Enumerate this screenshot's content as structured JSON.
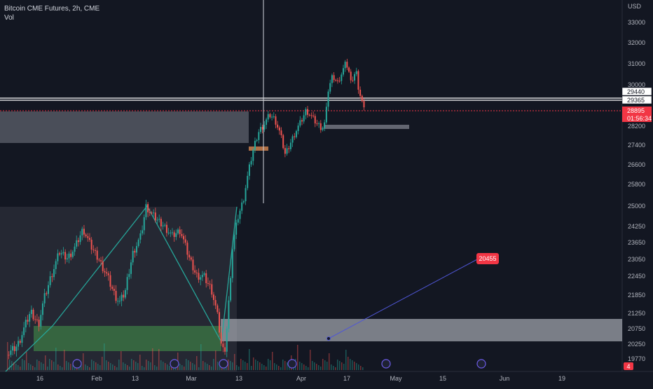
{
  "chart_data": {
    "type": "candlestick",
    "title": "Bitcoin CME Futures, 2h, CME",
    "subtitle": "Vol",
    "currency": "USD",
    "y_ticks": [
      33000,
      32000,
      31000,
      30000,
      28200,
      27400,
      26600,
      25800,
      25000,
      24250,
      23650,
      23050,
      22450,
      21850,
      21250,
      20750,
      20250,
      19770
    ],
    "x_ticks": [
      "16",
      "Feb",
      "13",
      "Mar",
      "13",
      "Apr",
      "17",
      "May",
      "15",
      "Jun",
      "19"
    ],
    "price_tags": [
      {
        "value": "29440",
        "style": "white"
      },
      {
        "value": "29365",
        "style": "white"
      },
      {
        "value": "28895",
        "style": "red"
      },
      {
        "value": "01:56:34",
        "style": "red"
      }
    ],
    "annotation": "20455",
    "alert_badge": "4",
    "price_path": [
      [
        0,
        19900
      ],
      [
        0.02,
        20200
      ],
      [
        0.045,
        21300
      ],
      [
        0.06,
        20900
      ],
      [
        0.07,
        21700
      ],
      [
        0.085,
        22500
      ],
      [
        0.1,
        23300
      ],
      [
        0.115,
        23100
      ],
      [
        0.13,
        23500
      ],
      [
        0.145,
        24150
      ],
      [
        0.16,
        23500
      ],
      [
        0.175,
        23050
      ],
      [
        0.19,
        22500
      ],
      [
        0.205,
        21850
      ],
      [
        0.215,
        21600
      ],
      [
        0.225,
        21950
      ],
      [
        0.24,
        23300
      ],
      [
        0.255,
        23900
      ],
      [
        0.265,
        25000
      ],
      [
        0.275,
        24700
      ],
      [
        0.285,
        24500
      ],
      [
        0.3,
        24250
      ],
      [
        0.315,
        23900
      ],
      [
        0.33,
        24100
      ],
      [
        0.345,
        23200
      ],
      [
        0.36,
        22500
      ],
      [
        0.375,
        22450
      ],
      [
        0.39,
        22000
      ],
      [
        0.4,
        21250
      ],
      [
        0.408,
        20250
      ],
      [
        0.414,
        19900
      ],
      [
        0.42,
        21000
      ],
      [
        0.43,
        23600
      ],
      [
        0.44,
        24600
      ],
      [
        0.45,
        25200
      ],
      [
        0.46,
        26300
      ],
      [
        0.47,
        27300
      ],
      [
        0.48,
        28000
      ],
      [
        0.49,
        28300
      ],
      [
        0.5,
        28700
      ],
      [
        0.51,
        28500
      ],
      [
        0.52,
        27900
      ],
      [
        0.53,
        27000
      ],
      [
        0.54,
        27500
      ],
      [
        0.55,
        28000
      ],
      [
        0.56,
        28400
      ],
      [
        0.57,
        28900
      ],
      [
        0.58,
        28600
      ],
      [
        0.59,
        28300
      ],
      [
        0.6,
        28100
      ],
      [
        0.605,
        28300
      ],
      [
        0.61,
        29600
      ],
      [
        0.62,
        30400
      ],
      [
        0.63,
        30100
      ],
      [
        0.64,
        30700
      ],
      [
        0.645,
        31000
      ],
      [
        0.65,
        30800
      ],
      [
        0.655,
        30100
      ],
      [
        0.66,
        30400
      ],
      [
        0.665,
        30700
      ],
      [
        0.67,
        29800
      ],
      [
        0.675,
        29400
      ],
      [
        0.68,
        28895
      ]
    ]
  }
}
